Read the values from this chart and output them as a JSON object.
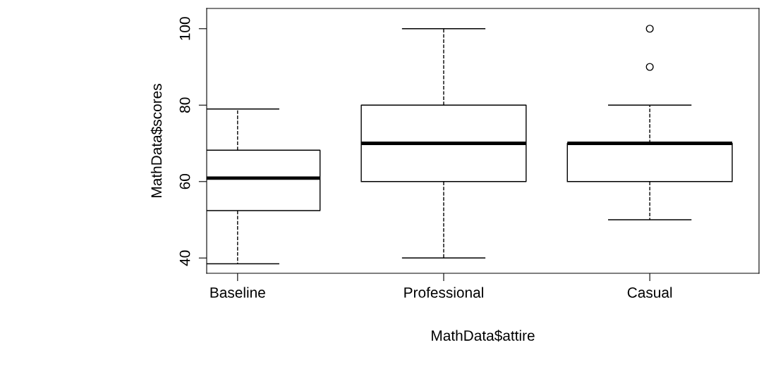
{
  "chart_data": {
    "type": "box",
    "xlabel": "MathData$attire",
    "ylabel": "MathData$scores",
    "categories": [
      "Baseline",
      "Professional",
      "Casual"
    ],
    "boxes": [
      {
        "low": 38.5,
        "q1": 52.4,
        "median": 60.9,
        "q3": 68.2,
        "high": 79
      },
      {
        "low": 40,
        "q1": 60,
        "median": 70,
        "q3": 80,
        "high": 100
      },
      {
        "low": 50,
        "q1": 60,
        "median": 70,
        "q3": 70,
        "high": 80,
        "outliers": [
          90,
          100
        ]
      }
    ],
    "color": "#000000",
    "ylim": [
      36,
      105.3
    ],
    "yticks": [
      40,
      60,
      80,
      100
    ],
    "grid": false
  }
}
